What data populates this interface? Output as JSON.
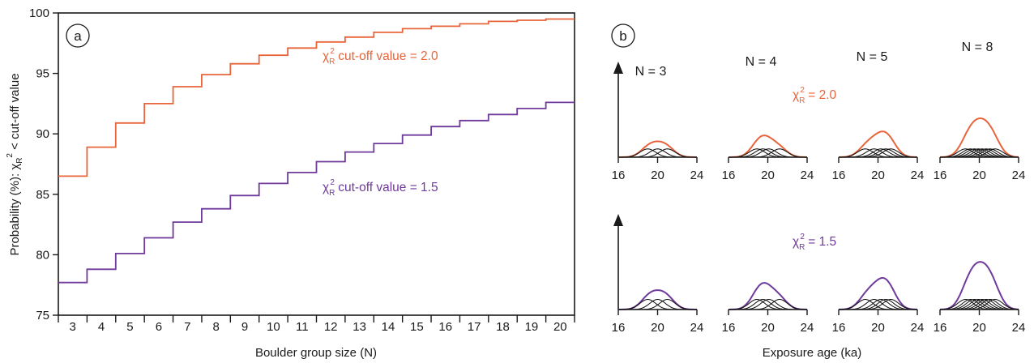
{
  "colors": {
    "orange": "#e8643a",
    "purple": "#6f3a9b",
    "ink": "#1a1a1a"
  },
  "chart_data": [
    {
      "type": "line",
      "panel": "a",
      "step": true,
      "xlabel": "Boulder group size (N)",
      "ylabel_prefix": "Probability (%): ",
      "ylabel_chi": "χ",
      "ylabel_suffix": " < cut-off value",
      "ylim": [
        75,
        100
      ],
      "yticks": [
        75,
        80,
        85,
        90,
        95,
        100
      ],
      "x": [
        3,
        4,
        5,
        6,
        7,
        8,
        9,
        10,
        11,
        12,
        13,
        14,
        15,
        16,
        17,
        18,
        19,
        20
      ],
      "series": [
        {
          "name_chi": "χ",
          "name_suffix": " cut-off value = 2.0",
          "color": "#e8643a",
          "values": [
            86.5,
            88.9,
            90.9,
            92.5,
            93.9,
            94.9,
            95.8,
            96.5,
            97.1,
            97.6,
            98.0,
            98.4,
            98.7,
            98.9,
            99.1,
            99.3,
            99.4,
            99.5
          ]
        },
        {
          "name_chi": "χ",
          "name_suffix": " cut-off value = 1.5",
          "color": "#6f3a9b",
          "values": [
            77.7,
            78.8,
            80.1,
            81.4,
            82.7,
            83.8,
            84.9,
            85.9,
            86.8,
            87.7,
            88.5,
            89.2,
            89.9,
            90.6,
            91.1,
            91.6,
            92.1,
            92.6
          ]
        }
      ]
    },
    {
      "type": "area",
      "panel": "b",
      "xlabel": "Exposure age (ka)",
      "xticks": [
        16,
        20,
        24
      ],
      "xlim": [
        16,
        24
      ],
      "groups": [
        {
          "label": "N = 3",
          "ages": [
            19.0,
            20.0,
            21.0
          ]
        },
        {
          "label": "N = 4",
          "ages": [
            18.9,
            19.5,
            20.1,
            21.2
          ]
        },
        {
          "label": "N = 5",
          "ages": [
            18.7,
            19.6,
            20.3,
            20.8,
            21.3
          ]
        },
        {
          "label": "N = 8",
          "ages": [
            18.6,
            19.1,
            19.5,
            19.9,
            20.3,
            20.7,
            21.1,
            21.6
          ]
        }
      ],
      "sigma": 0.8,
      "rows": [
        {
          "chi": "χ",
          "value": " = 2.0",
          "color": "#e8643a"
        },
        {
          "chi": "χ",
          "value": " = 1.5",
          "color": "#6f3a9b"
        }
      ]
    }
  ]
}
